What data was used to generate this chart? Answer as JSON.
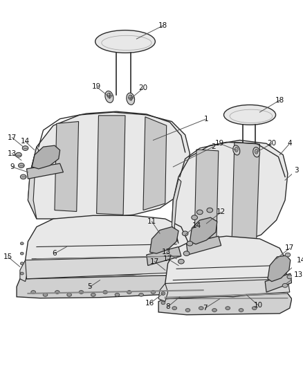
{
  "background_color": "#ffffff",
  "fig_width": 4.38,
  "fig_height": 5.33,
  "dpi": 100,
  "line_color": "#2a2a2a",
  "line_width": 1.0,
  "seat_face_color": "#e8e8e8",
  "seat_edge_color": "#2a2a2a",
  "seat_panel_color": "#d8d8d8",
  "seat_stripe_color": "#c8c8c8",
  "bracket_color": "#b0b0b0",
  "base_color": "#d0d0d0"
}
